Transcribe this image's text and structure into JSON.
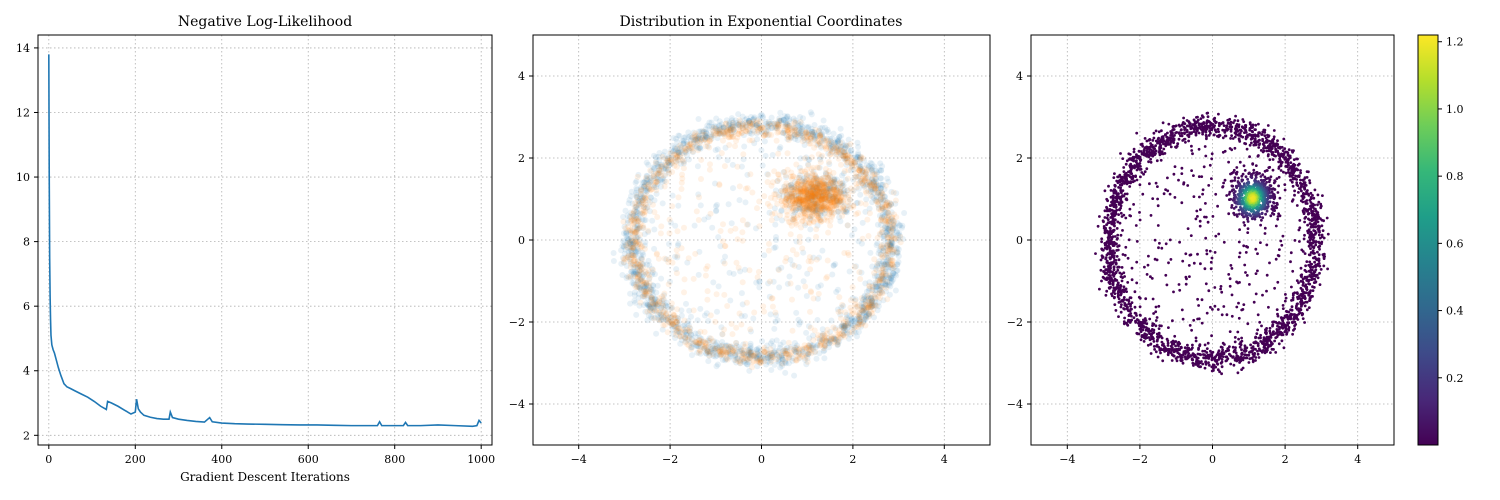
{
  "chart_data": [
    {
      "type": "line",
      "title": "Negative Log-Likelihood",
      "xlabel": "Gradient Descent Iterations",
      "ylabel": "",
      "xlim": [
        -25,
        1025
      ],
      "ylim": [
        1.7,
        14.4
      ],
      "xticks": [
        0,
        200,
        400,
        600,
        800,
        1000
      ],
      "yticks": [
        2,
        4,
        6,
        8,
        10,
        12,
        14
      ],
      "grid": true,
      "series": [
        {
          "color": "#1f77b4",
          "x": [
            0,
            1,
            2,
            3,
            4,
            5,
            7,
            10,
            13,
            17,
            22,
            28,
            35,
            42,
            50,
            60,
            75,
            90,
            105,
            120,
            133,
            136,
            145,
            160,
            175,
            190,
            200,
            203,
            207,
            212,
            220,
            235,
            250,
            265,
            278,
            281,
            286,
            300,
            320,
            340,
            360,
            372,
            378,
            400,
            430,
            460,
            500,
            540,
            580,
            620,
            660,
            700,
            740,
            760,
            765,
            770,
            800,
            820,
            825,
            830,
            860,
            900,
            940,
            980,
            990,
            995,
            1000
          ],
          "y": [
            13.8,
            10.0,
            7.5,
            6.3,
            5.6,
            5.1,
            4.8,
            4.65,
            4.55,
            4.35,
            4.1,
            3.85,
            3.6,
            3.5,
            3.45,
            3.38,
            3.28,
            3.18,
            3.05,
            2.9,
            2.8,
            3.05,
            3.0,
            2.9,
            2.78,
            2.66,
            2.72,
            3.12,
            2.82,
            2.72,
            2.62,
            2.56,
            2.52,
            2.5,
            2.5,
            2.72,
            2.55,
            2.5,
            2.46,
            2.43,
            2.41,
            2.55,
            2.42,
            2.38,
            2.36,
            2.35,
            2.34,
            2.33,
            2.32,
            2.32,
            2.31,
            2.3,
            2.3,
            2.3,
            2.42,
            2.3,
            2.3,
            2.3,
            2.4,
            2.3,
            2.3,
            2.32,
            2.3,
            2.28,
            2.3,
            2.46,
            2.38
          ]
        }
      ]
    },
    {
      "type": "scatter",
      "title": "Distribution in Exponential Coordinates",
      "xlim": [
        -5,
        5
      ],
      "ylim": [
        -5,
        5
      ],
      "xticks": [
        -4,
        -2,
        0,
        2,
        4
      ],
      "yticks": [
        -4,
        -2,
        0,
        2,
        4
      ],
      "xtick_labels": [
        "−4",
        "−2",
        "0",
        "2",
        "4"
      ],
      "ytick_labels": [
        "−4",
        "−2",
        "0",
        "2",
        "4"
      ],
      "grid": true,
      "series": [
        {
          "color": "#1f77b4",
          "alpha": 0.1,
          "components": [
            {
              "kind": "ring",
              "center": [
                0.0,
                0.0
              ],
              "radius": 2.85,
              "width": 0.28,
              "weight": 0.78
            },
            {
              "kind": "blob",
              "center": [
                1.25,
                1.1
              ],
              "spread": [
                0.38,
                0.3
              ],
              "weight": 0.12
            },
            {
              "kind": "uniform_disk",
              "radius": 2.7,
              "weight": 0.1
            }
          ]
        },
        {
          "color": "#ff7f0e",
          "alpha": 0.1,
          "components": [
            {
              "kind": "ring",
              "center": [
                0.0,
                -0.05
              ],
              "radius": 2.8,
              "width": 0.22,
              "weight": 0.55
            },
            {
              "kind": "blob",
              "center": [
                1.15,
                1.05
              ],
              "spread": [
                0.35,
                0.28
              ],
              "weight": 0.35
            },
            {
              "kind": "uniform_disk",
              "radius": 2.6,
              "weight": 0.1
            }
          ]
        }
      ]
    },
    {
      "type": "scatter",
      "title": "",
      "xlim": [
        -5,
        5
      ],
      "ylim": [
        -5,
        5
      ],
      "xticks": [
        -4,
        -2,
        0,
        2,
        4
      ],
      "yticks": [
        -4,
        -2,
        0,
        2,
        4
      ],
      "xtick_labels": [
        "−4",
        "−2",
        "0",
        "2",
        "4"
      ],
      "ytick_labels": [
        "−4",
        "−2",
        "0",
        "2",
        "4"
      ],
      "grid": true,
      "colormap": "viridis",
      "colorbar": {
        "range": [
          0.0,
          1.22
        ],
        "ticks": [
          0.2,
          0.4,
          0.6,
          0.8,
          1.0,
          1.2
        ],
        "tick_labels": [
          "0.2",
          "0.4",
          "0.6",
          "0.8",
          "1.0",
          "1.2"
        ]
      },
      "density_peak": {
        "center": [
          1.1,
          1.02
        ],
        "value": 1.2
      },
      "components": [
        {
          "kind": "ring",
          "center": [
            0.0,
            -0.05
          ],
          "radius": 2.85,
          "width": 0.28,
          "weight": 0.7
        },
        {
          "kind": "blob",
          "center": [
            1.15,
            1.05
          ],
          "spread": [
            0.3,
            0.26
          ],
          "weight": 0.2
        },
        {
          "kind": "uniform_disk",
          "radius": 2.6,
          "weight": 0.1
        }
      ]
    }
  ]
}
